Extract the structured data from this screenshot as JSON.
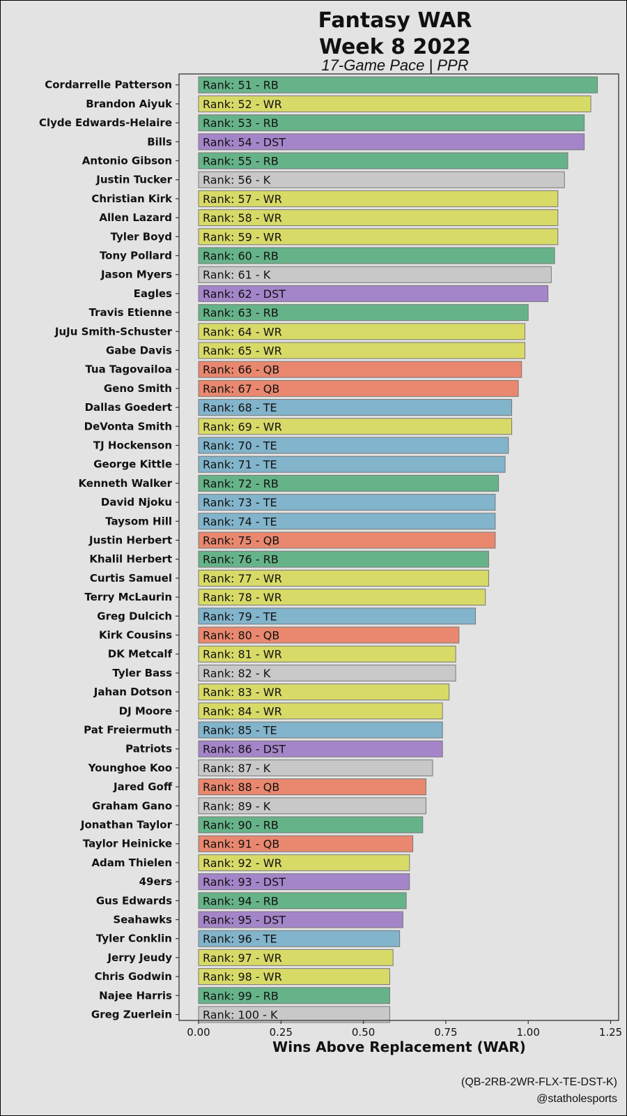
{
  "chart_data": {
    "type": "bar",
    "orientation": "horizontal",
    "title_line1": "Fantasy WAR",
    "title_line2": "Week 8 2022",
    "subtitle": "17-Game Pace | PPR",
    "xlabel": "Wins Above Replacement (WAR)",
    "xlim": [
      -0.05,
      1.27
    ],
    "xticks": [
      "0.00",
      "0.25",
      "0.50",
      "0.75",
      "1.00",
      "1.25"
    ],
    "grid": false,
    "legend": "none",
    "caption_line1": "(QB-2RB-2WR-FLX-TE-DST-K)",
    "caption_line2": "@statholesports",
    "position_colors": {
      "RB": "#66b389",
      "WR": "#d8da68",
      "DST": "#a585c9",
      "K": "#c8c8c8",
      "QB": "#e9886f",
      "TE": "#82b4cb"
    },
    "categories": [
      "Cordarrelle Patterson",
      "Brandon Aiyuk",
      "Clyde Edwards-Helaire",
      "Bills",
      "Antonio Gibson",
      "Justin Tucker",
      "Christian Kirk",
      "Allen Lazard",
      "Tyler Boyd",
      "Tony Pollard",
      "Jason Myers",
      "Eagles",
      "Travis Etienne",
      "JuJu Smith-Schuster",
      "Gabe Davis",
      "Tua Tagovailoa",
      "Geno Smith",
      "Dallas Goedert",
      "DeVonta Smith",
      "TJ Hockenson",
      "George Kittle",
      "Kenneth Walker",
      "David Njoku",
      "Taysom Hill",
      "Justin Herbert",
      "Khalil Herbert",
      "Curtis Samuel",
      "Terry McLaurin",
      "Greg Dulcich",
      "Kirk Cousins",
      "DK Metcalf",
      "Tyler Bass",
      "Jahan Dotson",
      "DJ Moore",
      "Pat Freiermuth",
      "Patriots",
      "Younghoe Koo",
      "Jared Goff",
      "Graham Gano",
      "Jonathan Taylor",
      "Taylor Heinicke",
      "Adam Thielen",
      "49ers",
      "Gus Edwards",
      "Seahawks",
      "Tyler Conklin",
      "Jerry Jeudy",
      "Chris Godwin",
      "Najee Harris",
      "Greg Zuerlein"
    ],
    "bar_labels": [
      "Rank: 51 - RB",
      "Rank: 52 - WR",
      "Rank: 53 - RB",
      "Rank: 54 - DST",
      "Rank: 55 - RB",
      "Rank: 56 - K",
      "Rank: 57 - WR",
      "Rank: 58 - WR",
      "Rank: 59 - WR",
      "Rank: 60 - RB",
      "Rank: 61 - K",
      "Rank: 62 - DST",
      "Rank: 63 - RB",
      "Rank: 64 - WR",
      "Rank: 65 - WR",
      "Rank: 66 - QB",
      "Rank: 67 - QB",
      "Rank: 68 - TE",
      "Rank: 69 - WR",
      "Rank: 70 - TE",
      "Rank: 71 - TE",
      "Rank: 72 - RB",
      "Rank: 73 - TE",
      "Rank: 74 - TE",
      "Rank: 75 - QB",
      "Rank: 76 - RB",
      "Rank: 77 - WR",
      "Rank: 78 - WR",
      "Rank: 79 - TE",
      "Rank: 80 - QB",
      "Rank: 81 - WR",
      "Rank: 82 - K",
      "Rank: 83 - WR",
      "Rank: 84 - WR",
      "Rank: 85 - TE",
      "Rank: 86 - DST",
      "Rank: 87 - K",
      "Rank: 88 - QB",
      "Rank: 89 - K",
      "Rank: 90 - RB",
      "Rank: 91 - QB",
      "Rank: 92 - WR",
      "Rank: 93 - DST",
      "Rank: 94 - RB",
      "Rank: 95 - DST",
      "Rank: 96 - TE",
      "Rank: 97 - WR",
      "Rank: 98 - WR",
      "Rank: 99 - RB",
      "Rank: 100 - K"
    ],
    "positions": [
      "RB",
      "WR",
      "RB",
      "DST",
      "RB",
      "K",
      "WR",
      "WR",
      "WR",
      "RB",
      "K",
      "DST",
      "RB",
      "WR",
      "WR",
      "QB",
      "QB",
      "TE",
      "WR",
      "TE",
      "TE",
      "RB",
      "TE",
      "TE",
      "QB",
      "RB",
      "WR",
      "WR",
      "TE",
      "QB",
      "WR",
      "K",
      "WR",
      "WR",
      "TE",
      "DST",
      "K",
      "QB",
      "K",
      "RB",
      "QB",
      "WR",
      "DST",
      "RB",
      "DST",
      "TE",
      "WR",
      "WR",
      "RB",
      "K"
    ],
    "values": [
      1.21,
      1.19,
      1.17,
      1.17,
      1.12,
      1.11,
      1.09,
      1.09,
      1.09,
      1.08,
      1.07,
      1.06,
      1.0,
      0.99,
      0.99,
      0.98,
      0.97,
      0.95,
      0.95,
      0.94,
      0.93,
      0.91,
      0.9,
      0.9,
      0.9,
      0.88,
      0.88,
      0.87,
      0.84,
      0.79,
      0.78,
      0.78,
      0.76,
      0.74,
      0.74,
      0.74,
      0.71,
      0.69,
      0.69,
      0.68,
      0.65,
      0.64,
      0.64,
      0.63,
      0.62,
      0.61,
      0.59,
      0.58,
      0.58,
      0.58
    ]
  }
}
